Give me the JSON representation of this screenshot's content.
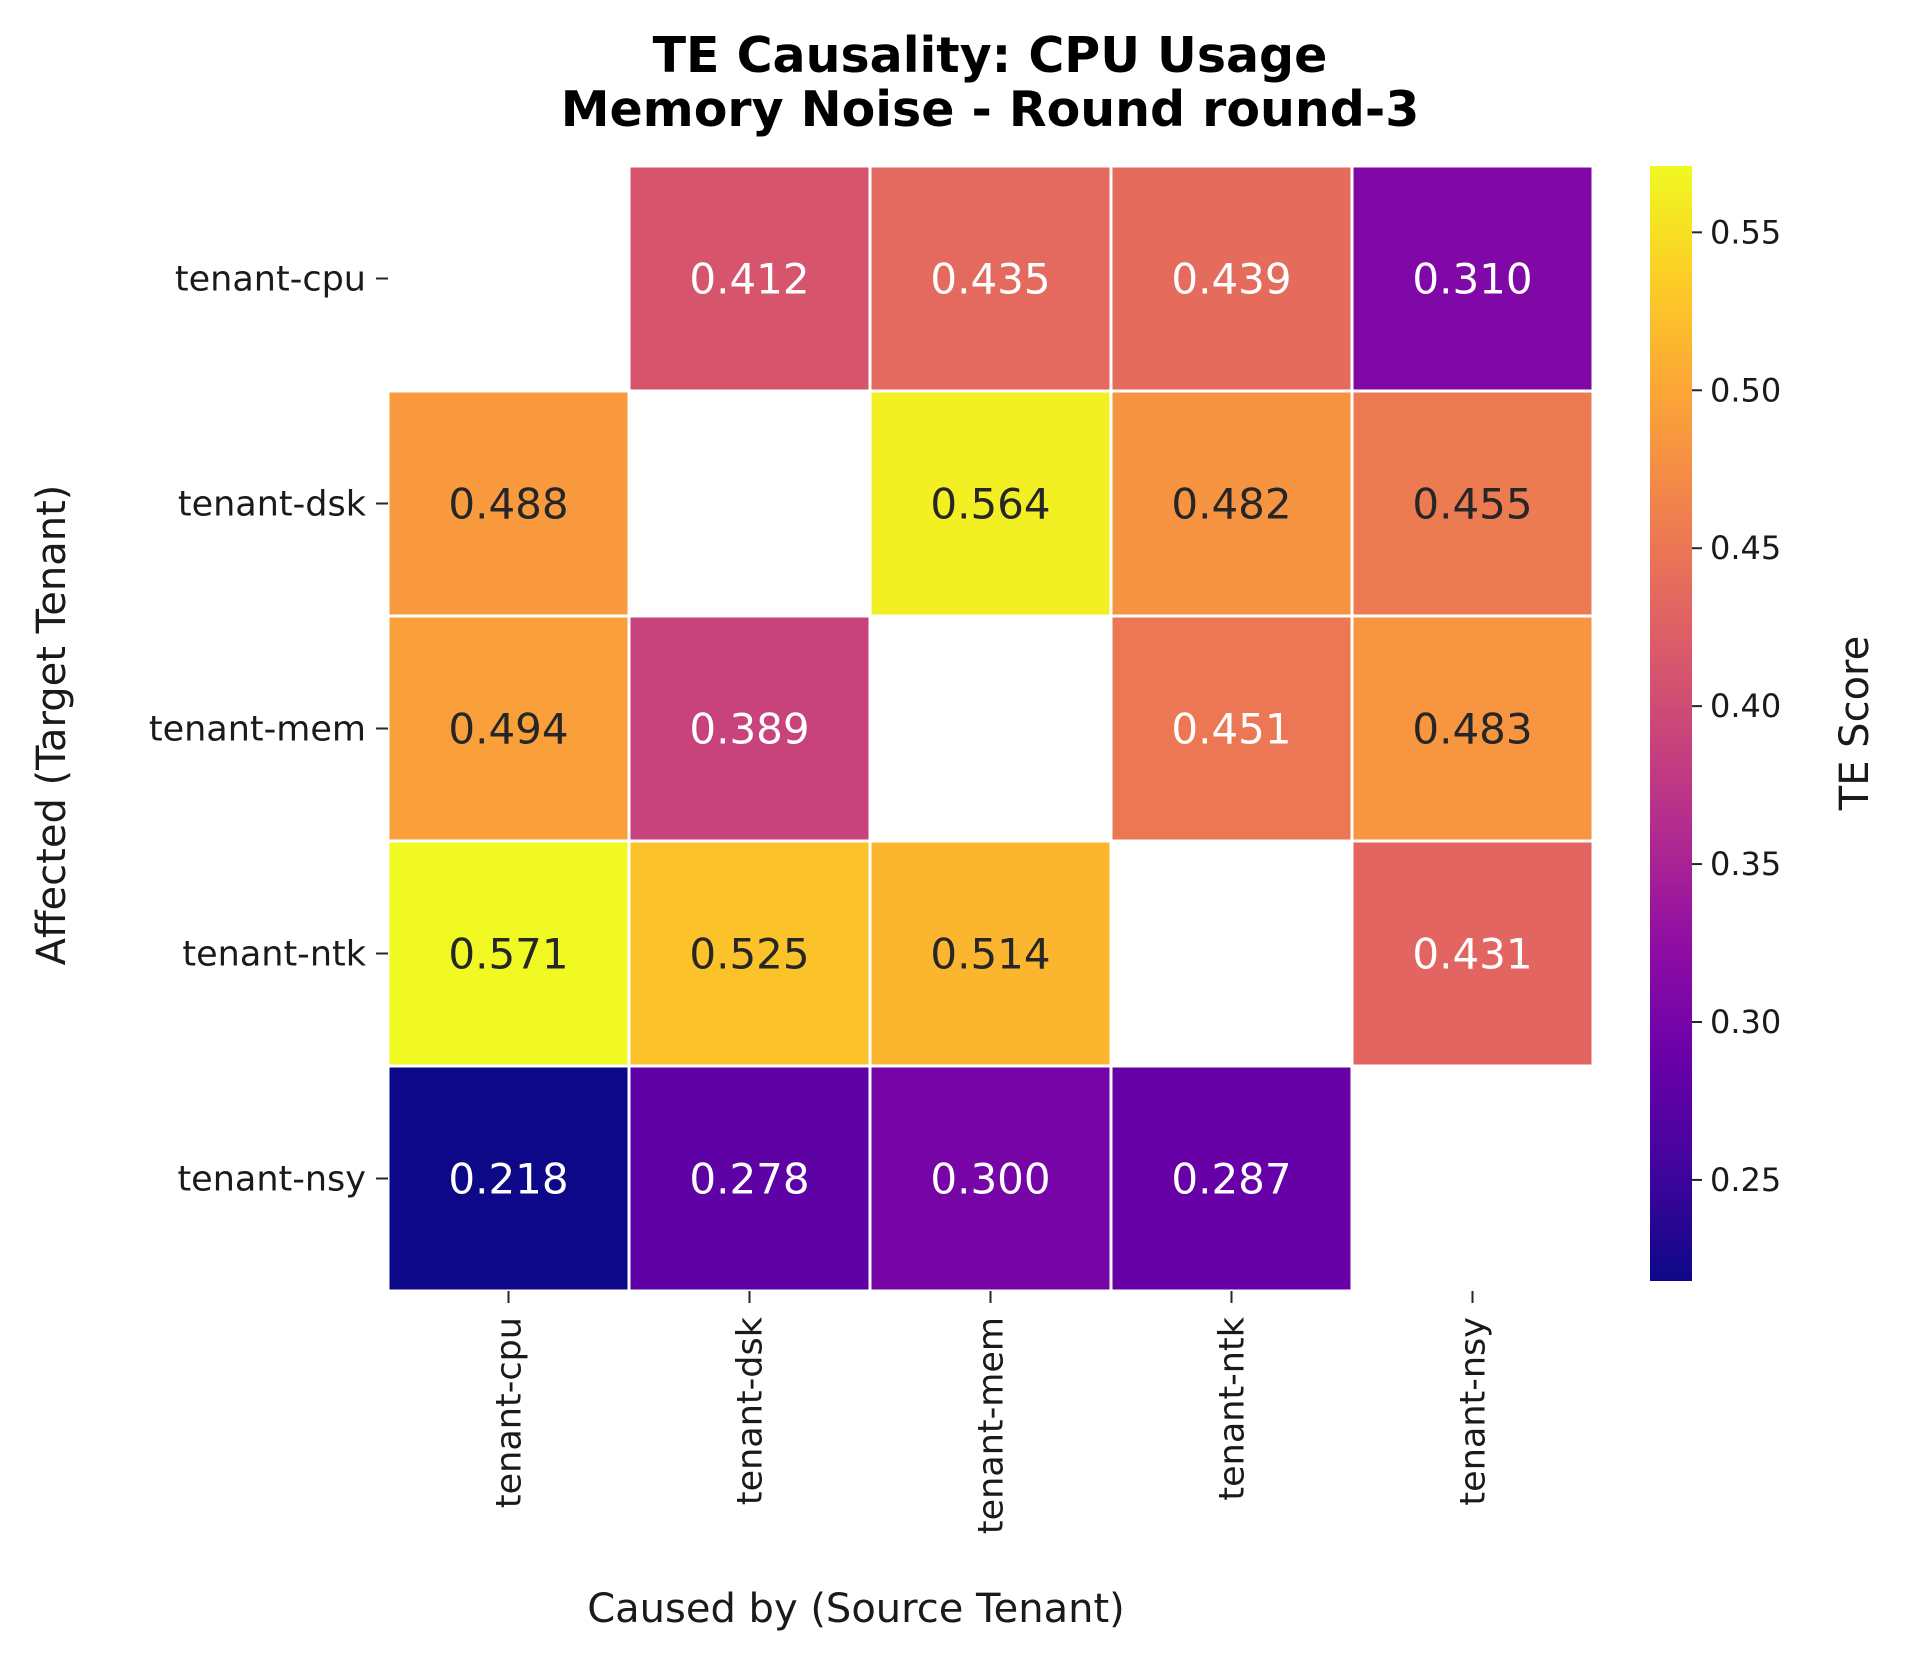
{
  "chart_data": {
    "type": "heatmap",
    "title": "TE Causality: CPU Usage\nMemory Noise - Round round-3",
    "xlabel": "Caused by (Source Tenant)",
    "ylabel": "Affected (Target Tenant)",
    "x_categories": [
      "tenant-cpu",
      "tenant-dsk",
      "tenant-mem",
      "tenant-ntk",
      "tenant-nsy"
    ],
    "y_categories": [
      "tenant-cpu",
      "tenant-dsk",
      "tenant-mem",
      "tenant-ntk",
      "tenant-nsy"
    ],
    "values": [
      [
        null,
        0.412,
        0.435,
        0.439,
        0.31
      ],
      [
        0.488,
        null,
        0.564,
        0.482,
        0.455
      ],
      [
        0.494,
        0.389,
        null,
        0.451,
        0.483
      ],
      [
        0.571,
        0.525,
        0.514,
        null,
        0.431
      ],
      [
        0.218,
        0.278,
        0.3,
        0.287,
        null
      ]
    ],
    "colormap": "plasma",
    "vmin": 0.218,
    "vmax": 0.571,
    "colorbar": {
      "label": "TE Score",
      "ticks": [
        0.25,
        0.3,
        0.35,
        0.4,
        0.45,
        0.5,
        0.55
      ]
    },
    "grid": false
  }
}
